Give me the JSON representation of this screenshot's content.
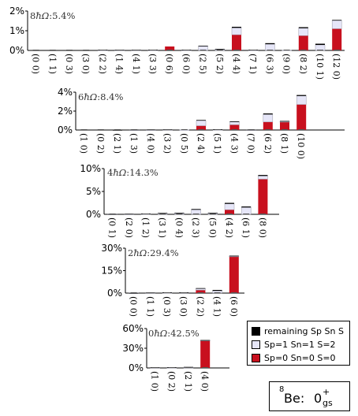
{
  "colors": {
    "remaining": "#000000",
    "sp1sn1": "#e6e6f8",
    "sp0sn0": "#c8101e",
    "axis": "#000000",
    "gridline": "#cfcfcf"
  },
  "legend": [
    {
      "key": "remaining",
      "label": "remaining Sp Sn S"
    },
    {
      "key": "sp1sn1",
      "label": "Sp=1 Sn=1 S=2"
    },
    {
      "key": "sp0sn0",
      "label": "Sp=0 Sn=0 S=0"
    }
  ],
  "nucleus_label": {
    "mass_number": "8",
    "symbol": "Be",
    "sep": ": ",
    "level": "0",
    "level_sup": "+",
    "level_sub": "gs"
  },
  "chart_data": [
    {
      "type": "bar",
      "title_prefix": "8",
      "title_em": "ħΩ",
      "title_value": ":5.4%",
      "yticks": [
        "2%",
        "1%",
        "0%"
      ],
      "ylim": [
        0,
        2
      ],
      "categories": [
        "(0 0)",
        "(1 1)",
        "(0 3)",
        "(3 0)",
        "(2 2)",
        "(1 4)",
        "(4 1)",
        "(3 3)",
        "(0 6)",
        "(6 0)",
        "(2 5)",
        "(5 2)",
        "(4 4)",
        "(7 1)",
        "(6 3)",
        "(9 0)",
        "(8 2)",
        "(10 1)",
        "(12 0)"
      ],
      "series": [
        {
          "key": "sp0sn0",
          "values": [
            0,
            0,
            0,
            0,
            0,
            0,
            0,
            0,
            0.2,
            0,
            0,
            0,
            0.8,
            0,
            0,
            0,
            0.75,
            0,
            1.1
          ]
        },
        {
          "key": "sp1sn1",
          "values": [
            0,
            0,
            0,
            0,
            0.02,
            0.02,
            0.02,
            0.02,
            0,
            0.02,
            0.22,
            0.06,
            0.35,
            0.02,
            0.32,
            0.02,
            0.38,
            0.28,
            0.42
          ]
        },
        {
          "key": "remaining",
          "values": [
            0,
            0,
            0,
            0,
            0.02,
            0.01,
            0.01,
            0.02,
            0,
            0.02,
            0.02,
            0.02,
            0.05,
            0.02,
            0.05,
            0,
            0.05,
            0.06,
            0.03
          ]
        }
      ]
    },
    {
      "type": "bar",
      "title_prefix": "6",
      "title_em": "ħΩ",
      "title_value": ":8.4%",
      "yticks": [
        "4%",
        "2%",
        "0%"
      ],
      "ylim": [
        0,
        4
      ],
      "categories": [
        "(1 0)",
        "(0 2)",
        "(2 1)",
        "(1 3)",
        "(4 0)",
        "(3 2)",
        "(0 5)",
        "(2 4)",
        "(5 1)",
        "(4 3)",
        "(7 0)",
        "(6 2)",
        "(8 1)",
        "(10 0)"
      ],
      "series": [
        {
          "key": "sp0sn0",
          "values": [
            0,
            0,
            0,
            0,
            0,
            0,
            0,
            0.45,
            0,
            0.55,
            0,
            0.85,
            0.85,
            2.7
          ]
        },
        {
          "key": "sp1sn1",
          "values": [
            0,
            0,
            0,
            0.02,
            0.02,
            0.03,
            0.02,
            0.55,
            0.05,
            0.3,
            0.02,
            0.8,
            0.05,
            0.9
          ]
        },
        {
          "key": "remaining",
          "values": [
            0,
            0,
            0.01,
            0.02,
            0.03,
            0.03,
            0,
            0.06,
            0.02,
            0.07,
            0.02,
            0.1,
            0.06,
            0.1
          ]
        }
      ]
    },
    {
      "type": "bar",
      "title_prefix": "4",
      "title_em": "ħΩ",
      "title_value": ":14.3%",
      "yticks": [
        "10%",
        "5%",
        "0%"
      ],
      "ylim": [
        0,
        10
      ],
      "categories": [
        "(0 1)",
        "(2 0)",
        "(1 2)",
        "(3 1)",
        "(0 4)",
        "(2 3)",
        "(5 0)",
        "(4 2)",
        "(6 1)",
        "(8 0)"
      ],
      "series": [
        {
          "key": "sp0sn0",
          "values": [
            0,
            0,
            0,
            0,
            0,
            0,
            0,
            1.0,
            0,
            7.7
          ]
        },
        {
          "key": "sp1sn1",
          "values": [
            0.05,
            0.05,
            0.1,
            0.2,
            0.3,
            1.0,
            0.3,
            1.3,
            1.5,
            0.7
          ]
        },
        {
          "key": "remaining",
          "values": [
            0.02,
            0.05,
            0.05,
            0.1,
            0.05,
            0.15,
            0.05,
            0.2,
            0.2,
            0.2
          ]
        }
      ]
    },
    {
      "type": "bar",
      "title_prefix": "2",
      "title_em": "ħΩ",
      "title_value": ":29.4%",
      "yticks": [
        "30%",
        "15%",
        "0%"
      ],
      "ylim": [
        0,
        30
      ],
      "categories": [
        "(0 0)",
        "(1 1)",
        "(0 3)",
        "(3 0)",
        "(2 2)",
        "(4 1)",
        "(6 0)"
      ],
      "series": [
        {
          "key": "sp0sn0",
          "values": [
            0,
            0,
            0,
            0,
            2.0,
            0,
            24.5
          ]
        },
        {
          "key": "sp1sn1",
          "values": [
            0.1,
            0.2,
            0.3,
            0.4,
            1.0,
            1.5,
            0.2
          ]
        },
        {
          "key": "remaining",
          "values": [
            0.05,
            0.1,
            0.1,
            0.1,
            0.3,
            0.6,
            0.3
          ]
        }
      ]
    },
    {
      "type": "bar",
      "title_prefix": "0",
      "title_em": "ħΩ",
      "title_value": ":42.5%",
      "yticks": [
        "60%",
        "30%",
        "0%"
      ],
      "ylim": [
        0,
        60
      ],
      "categories": [
        "(1 0)",
        "(0 2)",
        "(2 1)",
        "(4 0)"
      ],
      "series": [
        {
          "key": "sp0sn0",
          "values": [
            0,
            0,
            0,
            41.5
          ]
        },
        {
          "key": "sp1sn1",
          "values": [
            0.5,
            0.6,
            0.8,
            0.6
          ]
        },
        {
          "key": "remaining",
          "values": [
            0.3,
            0.4,
            0.8,
            0.4
          ]
        }
      ]
    }
  ]
}
